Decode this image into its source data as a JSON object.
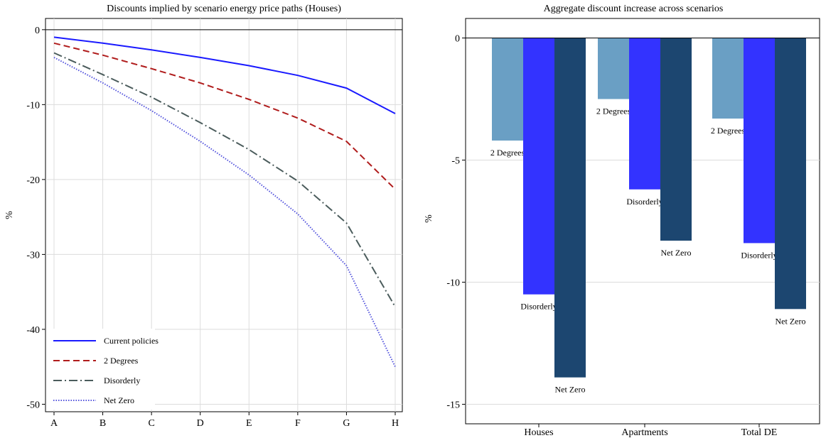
{
  "chart_data": [
    {
      "type": "line",
      "title": "Discounts implied by scenario energy price paths (Houses)",
      "xlabel": "",
      "ylabel": "%",
      "categories": [
        "A",
        "B",
        "C",
        "D",
        "E",
        "F",
        "G",
        "H"
      ],
      "ylim": [
        -51,
        1.5
      ],
      "yticks": [
        0,
        -10,
        -20,
        -30,
        -40,
        -50
      ],
      "ytick_labels": [
        "0",
        "-10",
        "-20",
        "-30",
        "-40",
        "-50"
      ],
      "grid": true,
      "legend_position": "bottom-left",
      "series": [
        {
          "name": "Current policies",
          "color": "#1a1aff",
          "style": "solid",
          "values": [
            -1.0,
            -1.8,
            -2.7,
            -3.7,
            -4.8,
            -6.1,
            -7.8,
            -11.2
          ]
        },
        {
          "name": "2 Degrees",
          "color": "#b01c1c",
          "style": "dash",
          "values": [
            -1.8,
            -3.4,
            -5.2,
            -7.1,
            -9.3,
            -11.8,
            -14.9,
            -21.3
          ]
        },
        {
          "name": "Disorderly",
          "color": "#4b5c5c",
          "style": "dashdot",
          "values": [
            -3.1,
            -6.0,
            -9.0,
            -12.4,
            -16.0,
            -20.2,
            -25.8,
            -37.0
          ]
        },
        {
          "name": "Net Zero",
          "color": "#5555dd",
          "style": "dot",
          "values": [
            -3.7,
            -7.1,
            -10.8,
            -14.9,
            -19.4,
            -24.6,
            -31.5,
            -45.0
          ]
        }
      ]
    },
    {
      "type": "bar",
      "title": "Aggregate discount increase across scenarios",
      "xlabel": "",
      "ylabel": "%",
      "categories": [
        "Houses",
        "Apartments",
        "Total DE"
      ],
      "ylim": [
        -15.8,
        0.8
      ],
      "yticks": [
        0,
        -5,
        -10,
        -15
      ],
      "ytick_labels": [
        "0",
        "-5",
        "-10",
        "-15"
      ],
      "grid": true,
      "series": [
        {
          "name": "2 Degrees",
          "color": "#6a9fc4",
          "values": [
            -4.2,
            -2.5,
            -3.3
          ]
        },
        {
          "name": "Disorderly",
          "color": "#3333ff",
          "values": [
            -10.5,
            -6.2,
            -8.4
          ]
        },
        {
          "name": "Net Zero",
          "color": "#1c4670",
          "values": [
            -13.9,
            -8.3,
            -11.1
          ]
        }
      ],
      "bar_labels": [
        [
          "2 Degrees",
          "Disorderly",
          "Net Zero"
        ],
        [
          "2 Degrees",
          "Disorderly",
          "Net Zero"
        ],
        [
          "2 Degrees",
          "Disorderly",
          "Net Zero"
        ]
      ]
    }
  ]
}
